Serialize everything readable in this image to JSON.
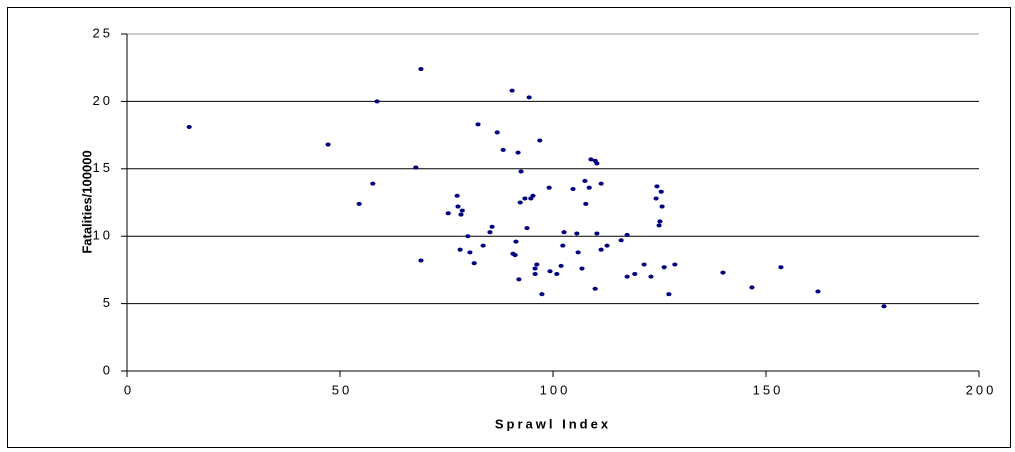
{
  "chart_data": {
    "type": "scatter",
    "x_label": "Sprawl Index",
    "y_label": "Fatalities/100000",
    "color": "#000080",
    "grid": true,
    "xlim": [
      0,
      200
    ],
    "xticks": [
      0,
      50,
      100,
      150,
      200
    ],
    "ylim": [
      0,
      25
    ],
    "yticks": [
      0,
      5,
      10,
      15,
      20,
      25
    ],
    "x": [
      14.6,
      47.2,
      54.5,
      57.7,
      58.7,
      67.8,
      69.0,
      69.0,
      75.4,
      77.5,
      77.7,
      78.7,
      78.4,
      78.2,
      80.0,
      80.5,
      81.5,
      82.4,
      83.6,
      85.2,
      85.7,
      86.9,
      88.3,
      90.4,
      90.6,
      91.1,
      91.3,
      92.0,
      91.8,
      92.5,
      92.3,
      93.4,
      93.9,
      94.4,
      94.8,
      95.3,
      95.8,
      95.8,
      96.2,
      96.9,
      97.4,
      99.1,
      99.3,
      100.9,
      101.9,
      102.3,
      102.6,
      104.7,
      105.6,
      105.9,
      106.8,
      107.5,
      107.7,
      108.5,
      108.9,
      109.9,
      110.3,
      109.9,
      110.3,
      111.3,
      111.3,
      112.7,
      116.0,
      117.4,
      117.4,
      119.2,
      121.4,
      123.0,
      124.2,
      124.4,
      124.9,
      125.1,
      125.4,
      125.6,
      126.1,
      127.2,
      128.6,
      139.9,
      146.7,
      153.5,
      162.2,
      177.7
    ],
    "values": [
      18.1,
      16.8,
      12.4,
      13.9,
      20.0,
      15.1,
      22.4,
      8.2,
      11.7,
      13.0,
      12.2,
      11.9,
      11.6,
      9.0,
      10.0,
      8.8,
      8.0,
      18.3,
      9.3,
      10.3,
      10.7,
      17.7,
      16.4,
      20.8,
      8.7,
      8.6,
      9.6,
      6.8,
      16.2,
      14.8,
      12.5,
      12.8,
      10.6,
      20.3,
      12.8,
      13.0,
      7.6,
      7.2,
      7.9,
      17.1,
      5.7,
      13.6,
      7.4,
      7.2,
      7.8,
      9.3,
      10.3,
      13.5,
      10.2,
      8.8,
      7.6,
      14.1,
      12.4,
      13.6,
      15.7,
      15.6,
      15.4,
      6.1,
      10.2,
      9.0,
      13.9,
      9.3,
      9.7,
      10.1,
      7.0,
      7.2,
      7.9,
      7.0,
      12.8,
      13.7,
      10.8,
      11.1,
      13.3,
      12.2,
      7.7,
      5.7,
      7.9,
      7.3,
      6.2,
      7.7,
      5.9,
      4.8
    ]
  }
}
